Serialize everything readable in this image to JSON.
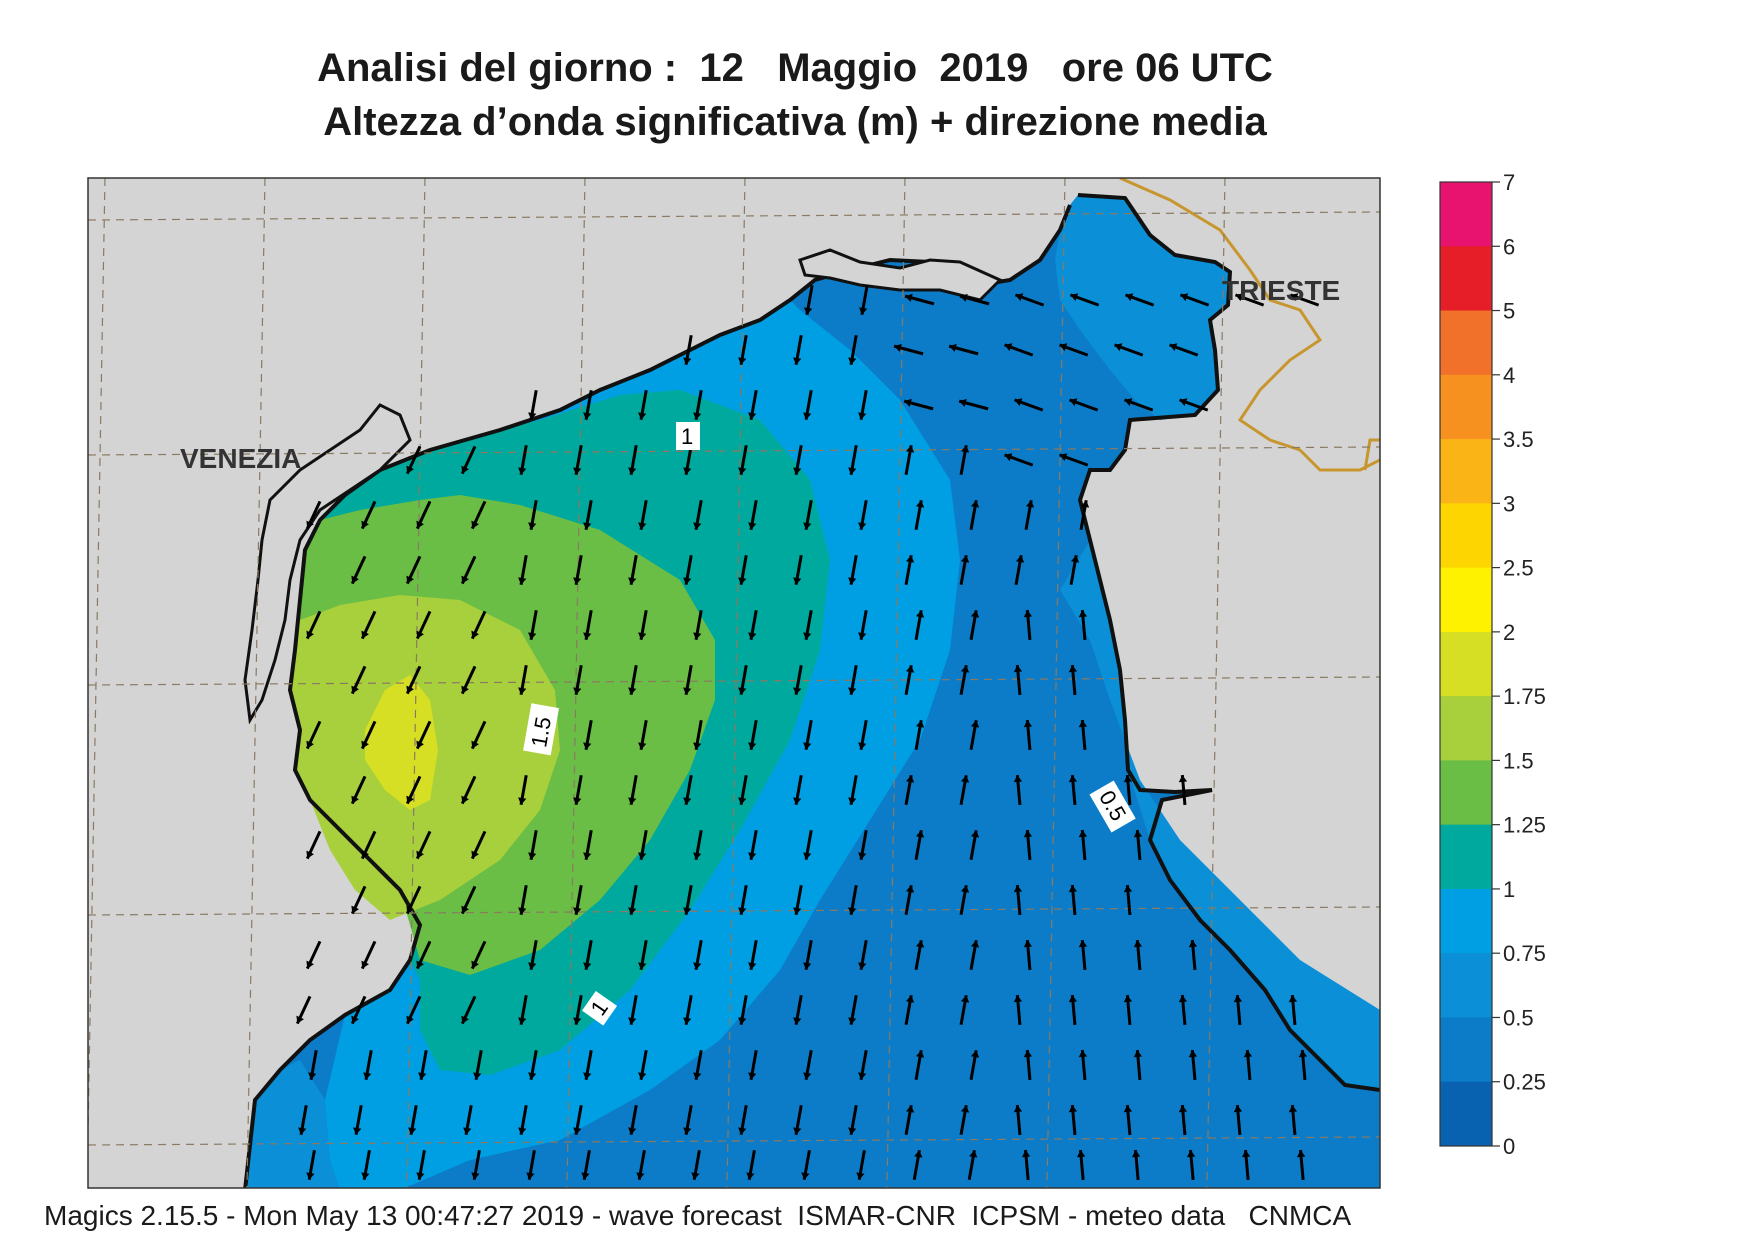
{
  "header": {
    "title_line1": "Analisi del giorno :  12   Maggio  2019   ore 06 UTC",
    "title_line2": "Altezza d’onda significativa (m) + direzione media"
  },
  "map": {
    "cities": [
      "VENEZIA",
      "TRIESTE"
    ],
    "contour_labels": [
      "1",
      "1.5",
      "1",
      "0.5"
    ],
    "land_color": "#d4d4d4",
    "border_color": "#c8962e"
  },
  "colorbar": {
    "ticks": [
      "7",
      "6",
      "5",
      "4",
      "3.5",
      "3",
      "2.5",
      "2",
      "1.75",
      "1.5",
      "1.25",
      "1",
      "0.75",
      "0.5",
      "0.25",
      "0"
    ],
    "colors": [
      "#e8136f",
      "#e61e28",
      "#f2712a",
      "#f6911f",
      "#fbb416",
      "#fdd500",
      "#fff200",
      "#d6df23",
      "#a8cf3c",
      "#6abd45",
      "#00a99d",
      "#009fe3",
      "#0b8fd6",
      "#0c7cc8",
      "#0862b0"
    ]
  },
  "footer": {
    "text": "Magics 2.15.5 - Mon May 13 00:47:27 2019 - wave forecast  ISMAR-CNR  ICPSM - meteo data   CNMCA"
  }
}
